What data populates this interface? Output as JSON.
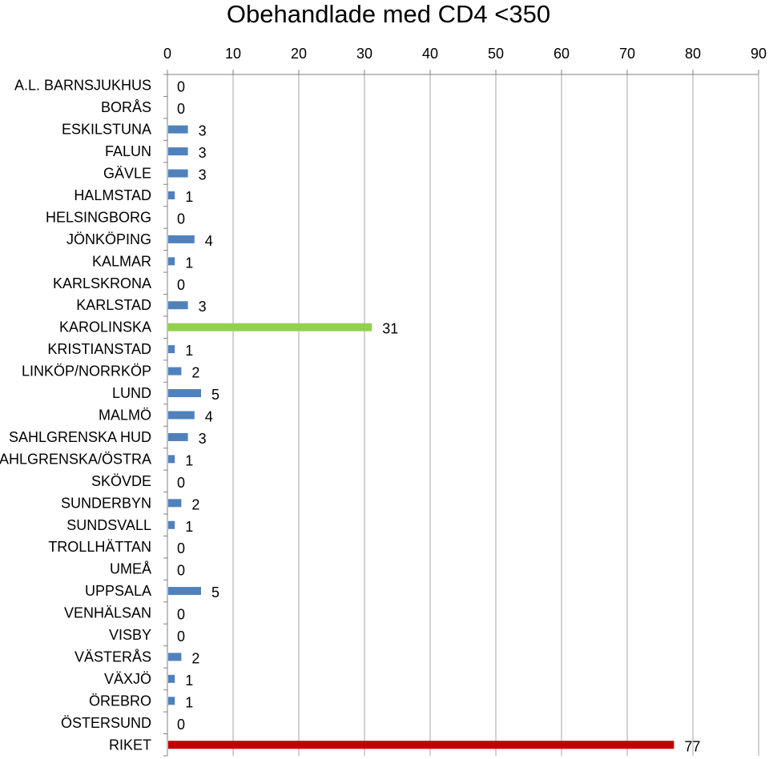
{
  "chart_data": {
    "type": "bar",
    "orientation": "horizontal",
    "title": "Obehandlade med CD4 <350",
    "xlabel": "",
    "ylabel": "",
    "xlim": [
      0,
      90
    ],
    "x_ticks": [
      0,
      10,
      20,
      30,
      40,
      50,
      60,
      70,
      80,
      90
    ],
    "x_axis_position": "top",
    "grid": true,
    "legend": false,
    "data_labels": true,
    "categories": [
      "A.L. BARNSJUKHUS",
      "BORÅS",
      "ESKILSTUNA",
      "FALUN",
      "GÄVLE",
      "HALMSTAD",
      "HELSINGBORG",
      "JÖNKÖPING",
      "KALMAR",
      "KARLSKRONA",
      "KARLSTAD",
      "KAROLINSKA",
      "KRISTIANSTAD",
      "LINKÖP/NORRKÖP",
      "LUND",
      "MALMÖ",
      "SAHLGRENSKA HUD",
      "SAHLGRENSKA/ÖSTRA",
      "SKÖVDE",
      "SUNDERBYN",
      "SUNDSVALL",
      "TROLLHÄTTAN",
      "UMEÅ",
      "UPPSALA",
      "VENHÄLSAN",
      "VISBY",
      "VÄSTERÅS",
      "VÄXJÖ",
      "ÖREBRO",
      "ÖSTERSUND",
      "RIKET"
    ],
    "values": [
      0,
      0,
      3,
      3,
      3,
      1,
      0,
      4,
      1,
      0,
      3,
      31,
      1,
      2,
      5,
      4,
      3,
      1,
      0,
      2,
      1,
      0,
      0,
      5,
      0,
      0,
      2,
      1,
      1,
      0,
      77
    ],
    "colors": {
      "default": "#4F81BD",
      "highlight": "#92D050",
      "total": "#C00000",
      "grid": "#A6A6A6",
      "axis": "#808080"
    },
    "highlight_category": "KAROLINSKA",
    "total_category": "RIKET"
  }
}
